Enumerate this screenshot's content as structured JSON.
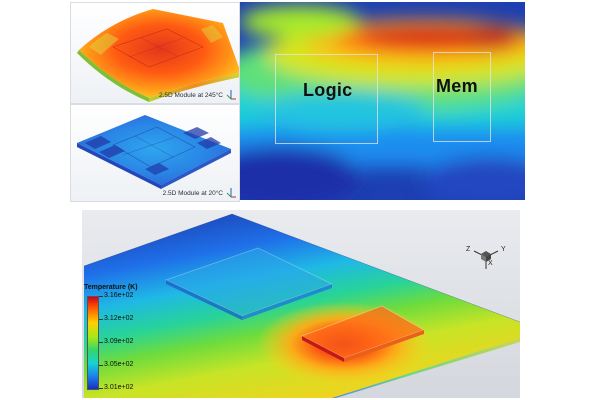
{
  "panels": {
    "hot": {
      "caption": "2.5D Module at 245°C"
    },
    "cold": {
      "caption": "2.5D Module at 20°C"
    }
  },
  "heat_map": {
    "labels": {
      "logic": "Logic",
      "mem": "Mem"
    }
  },
  "temperature_view": {
    "legend_title": "Temperature (K)",
    "legend_values": [
      "3.16e+02",
      "3.12e+02",
      "3.09e+02",
      "3.05e+02",
      "3.01e+02"
    ],
    "axis_labels": {
      "z": "Z",
      "y": "Y",
      "x": "X"
    }
  },
  "colors": {
    "hot_max": "#d0021b",
    "cold_min": "#1c2fbd",
    "frame_line": "#e6e6e6"
  }
}
